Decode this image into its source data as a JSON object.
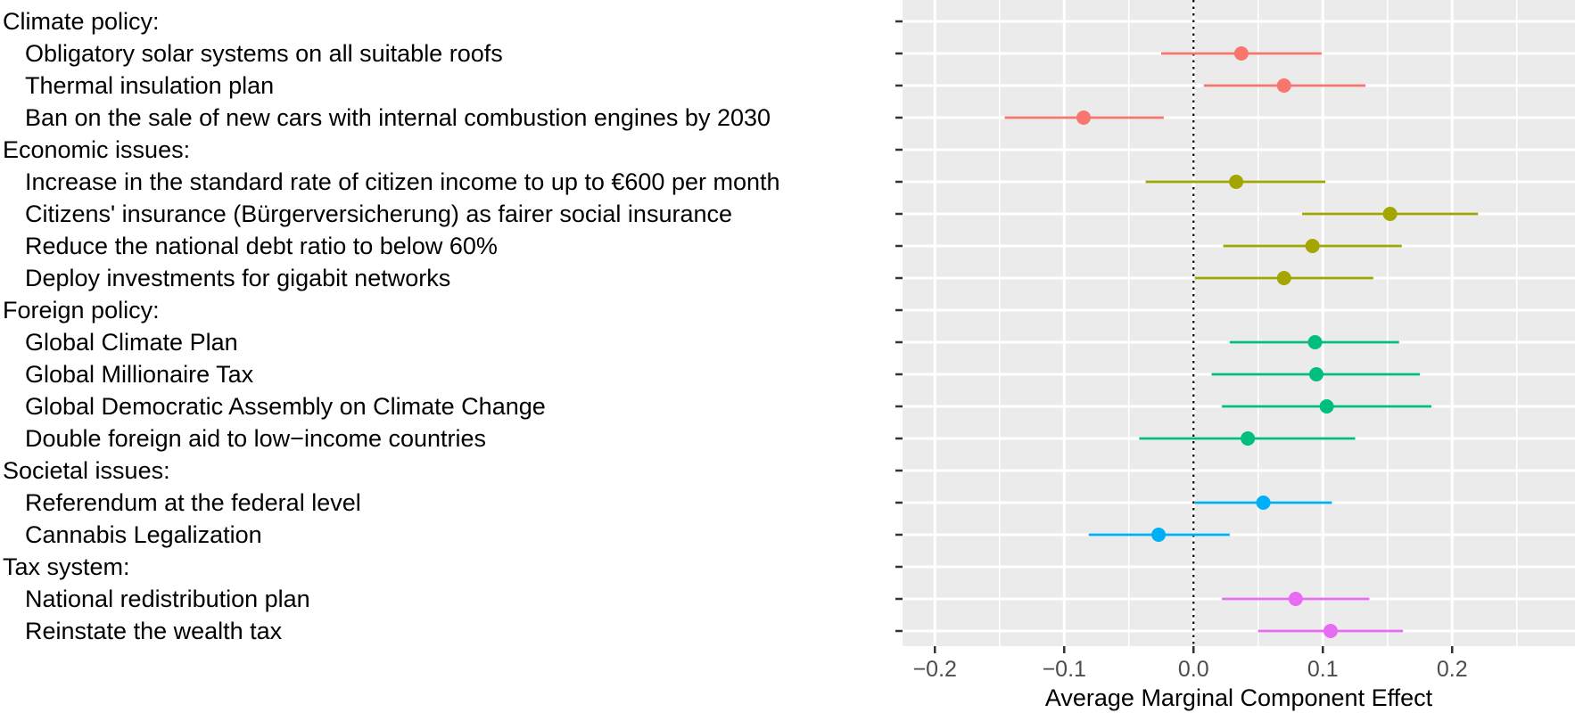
{
  "chart_data": {
    "type": "scatter",
    "subtype": "coefficient-plot-with-confidence-intervals",
    "title": "",
    "xlabel": "Average Marginal Component Effect",
    "ylabel": "",
    "xlim": [
      -0.225,
      0.295
    ],
    "xticks": [
      -0.2,
      -0.1,
      0.0,
      0.1,
      0.2
    ],
    "xtick_labels": [
      "−0.2",
      "−0.1",
      "0.0",
      "0.1",
      "0.2"
    ],
    "reference_line": {
      "x": 0,
      "style": "dotted"
    },
    "grid": true,
    "legend": "none",
    "background": "#EBEBEB",
    "rows": [
      {
        "label": "Climate policy:",
        "header": true
      },
      {
        "label": "Obligatory solar systems on all suitable roofs",
        "group": "Climate policy",
        "estimate": 0.037,
        "lower": -0.025,
        "upper": 0.099,
        "color": "#F8766D"
      },
      {
        "label": "Thermal insulation plan",
        "group": "Climate policy",
        "estimate": 0.07,
        "lower": 0.008,
        "upper": 0.133,
        "color": "#F8766D"
      },
      {
        "label": "Ban on the sale of new cars with internal combustion engines by 2030",
        "group": "Climate policy",
        "estimate": -0.085,
        "lower": -0.146,
        "upper": -0.023,
        "color": "#F8766D"
      },
      {
        "label": "Economic issues:",
        "header": true
      },
      {
        "label": "Increase in the standard rate of citizen income to up to €600 per month",
        "group": "Economic issues",
        "estimate": 0.033,
        "lower": -0.037,
        "upper": 0.102,
        "color": "#A3A500"
      },
      {
        "label": "Citizens' insurance (Bürgerversicherung) as fairer social insurance",
        "group": "Economic issues",
        "estimate": 0.152,
        "lower": 0.084,
        "upper": 0.22,
        "color": "#A3A500"
      },
      {
        "label": "Reduce the national debt ratio to below 60%",
        "group": "Economic issues",
        "estimate": 0.092,
        "lower": 0.023,
        "upper": 0.161,
        "color": "#A3A500"
      },
      {
        "label": "Deploy investments for gigabit networks",
        "group": "Economic issues",
        "estimate": 0.07,
        "lower": 0.001,
        "upper": 0.139,
        "color": "#A3A500"
      },
      {
        "label": "Foreign policy:",
        "header": true
      },
      {
        "label": "Global Climate Plan",
        "group": "Foreign policy",
        "estimate": 0.094,
        "lower": 0.028,
        "upper": 0.159,
        "color": "#00BF7D"
      },
      {
        "label": "Global Millionaire Tax",
        "group": "Foreign policy",
        "estimate": 0.095,
        "lower": 0.014,
        "upper": 0.175,
        "color": "#00BF7D"
      },
      {
        "label": "Global Democratic Assembly on Climate Change",
        "group": "Foreign policy",
        "estimate": 0.103,
        "lower": 0.022,
        "upper": 0.184,
        "color": "#00BF7D"
      },
      {
        "label": "Double foreign aid to low−income countries",
        "group": "Foreign policy",
        "estimate": 0.042,
        "lower": -0.042,
        "upper": 0.125,
        "color": "#00BF7D"
      },
      {
        "label": "Societal issues:",
        "header": true
      },
      {
        "label": "Referendum at the federal level",
        "group": "Societal issues",
        "estimate": 0.054,
        "lower": 0.001,
        "upper": 0.107,
        "color": "#00B0F6"
      },
      {
        "label": "Cannabis Legalization",
        "group": "Societal issues",
        "estimate": -0.027,
        "lower": -0.081,
        "upper": 0.028,
        "color": "#00B0F6"
      },
      {
        "label": "Tax system:",
        "header": true
      },
      {
        "label": "National redistribution plan",
        "group": "Tax system",
        "estimate": 0.079,
        "lower": 0.022,
        "upper": 0.136,
        "color": "#E76BF3"
      },
      {
        "label": "Reinstate the wealth tax",
        "group": "Tax system",
        "estimate": 0.106,
        "lower": 0.05,
        "upper": 0.162,
        "color": "#E76BF3"
      }
    ]
  }
}
